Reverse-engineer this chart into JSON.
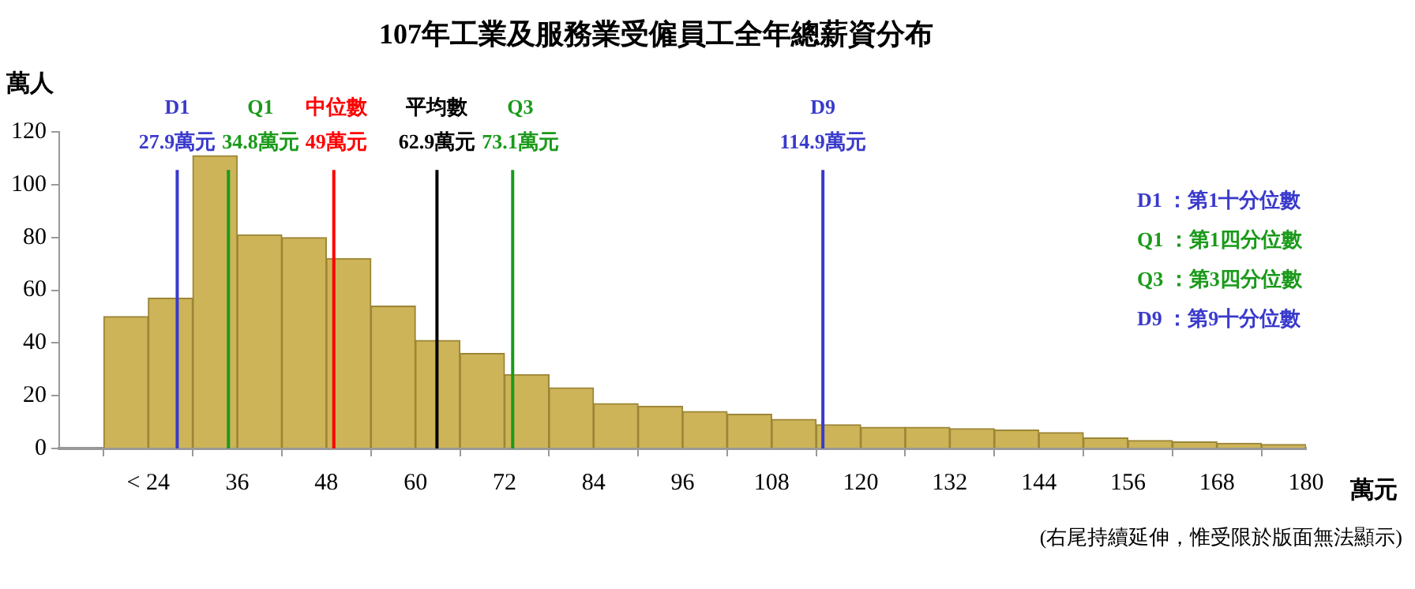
{
  "chart_data": {
    "type": "histogram",
    "title": "107年工業及服務業受僱員工全年總薪資分布",
    "xlabel": "萬元",
    "ylabel": "萬人",
    "bins": [
      18,
      24,
      30,
      36,
      42,
      48,
      54,
      60,
      66,
      72,
      78,
      84,
      90,
      96,
      102,
      108,
      114,
      120,
      126,
      132,
      138,
      144,
      150,
      156,
      162,
      168,
      174,
      180
    ],
    "values": [
      50,
      57,
      111,
      81,
      80,
      72,
      54,
      41,
      36,
      28,
      23,
      17,
      16,
      14,
      13,
      11,
      9,
      8,
      8,
      7.5,
      7,
      6,
      4,
      3,
      2.5,
      2,
      1.5
    ],
    "color": "#cdb458",
    "xlim": [
      12,
      180
    ],
    "xticks": [
      {
        "value": 24,
        "label": "< 24"
      },
      36,
      48,
      60,
      72,
      84,
      96,
      108,
      120,
      132,
      144,
      156,
      168,
      180
    ],
    "ylim": [
      0,
      120
    ],
    "yticks": [
      0,
      20,
      40,
      60,
      80,
      100,
      120
    ],
    "grid": false,
    "legend": false,
    "ref_lines": [
      {
        "axis": "x",
        "value": 27.9,
        "label": "D1\n27.9萬元",
        "color": "#3a3acc"
      },
      {
        "axis": "x",
        "value": 34.8,
        "label": "Q1\n34.8萬元",
        "color": "#1a9a1a"
      },
      {
        "axis": "x",
        "value": 49,
        "label": "中位數\n49萬元",
        "color": "#ff0000"
      },
      {
        "axis": "x",
        "value": 62.9,
        "label": "平均數\n62.9萬元",
        "color": "#000000"
      },
      {
        "axis": "x",
        "value": 73.1,
        "label": "Q3\n73.1萬元",
        "color": "#1a9a1a"
      },
      {
        "axis": "x",
        "value": 114.9,
        "label": "D9\n114.9萬元",
        "color": "#3a3acc"
      }
    ],
    "annotations": [
      "D1 ：第1十分位數",
      "Q1 ：第1四分位數",
      "Q3 ：第3四分位數",
      "D9 ：第9十分位數",
      "(右尾持續延伸，惟受限於版面無法顯示)"
    ]
  }
}
